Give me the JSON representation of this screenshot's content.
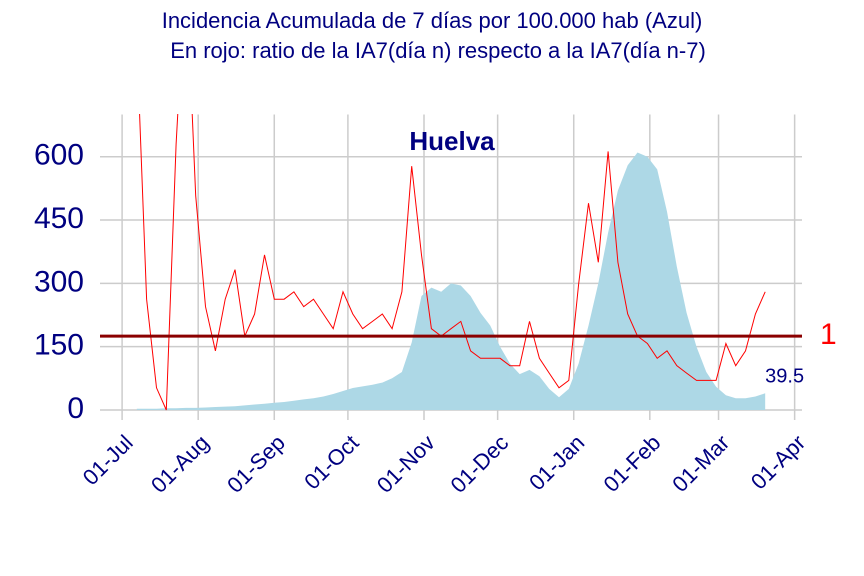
{
  "chart_data": {
    "type": "area-line",
    "title": "Incidencia Acumulada de 7 días por 100.000 hab (Azul)",
    "subtitle": "En rojo: ratio de la IA7(día n) respecto a la IA7(día n-7)",
    "annotation": "Huelva",
    "x": [
      6,
      10,
      14,
      18,
      22,
      26,
      30,
      34,
      38,
      42,
      46,
      50,
      54,
      58,
      62,
      66,
      70,
      74,
      78,
      82,
      86,
      90,
      94,
      98,
      102,
      106,
      110,
      114,
      118,
      122,
      126,
      130,
      134,
      138,
      142,
      146,
      150,
      154,
      158,
      162,
      166,
      170,
      174,
      178,
      182,
      186,
      190,
      194,
      198,
      202,
      206,
      210,
      214,
      218,
      222,
      226,
      230,
      234,
      238,
      242,
      246,
      250,
      254,
      258,
      262
    ],
    "series": [
      {
        "color": "#add8e6",
        "axis": "y",
        "values": [
          3,
          3,
          3,
          4,
          4,
          5,
          5,
          6,
          7,
          8,
          9,
          11,
          13,
          15,
          17,
          19,
          22,
          25,
          28,
          32,
          38,
          45,
          52,
          56,
          60,
          65,
          75,
          90,
          160,
          270,
          290,
          280,
          300,
          295,
          270,
          230,
          200,
          150,
          110,
          85,
          95,
          80,
          50,
          30,
          50,
          110,
          200,
          300,
          420,
          520,
          580,
          610,
          600,
          570,
          470,
          340,
          230,
          150,
          90,
          55,
          35,
          28,
          28,
          32,
          39.5
        ]
      },
      {
        "color": "#ff0000",
        "axis": "y2",
        "values": [
          5,
          1.5,
          0.3,
          0,
          3.6,
          6,
          2.9,
          1.4,
          0.8,
          1.5,
          1.9,
          1.0,
          1.3,
          2.1,
          1.5,
          1.5,
          1.6,
          1.4,
          1.5,
          1.3,
          1.1,
          1.6,
          1.3,
          1.1,
          1.2,
          1.3,
          1.1,
          1.6,
          3.3,
          2.1,
          1.1,
          1.0,
          1.1,
          1.2,
          0.8,
          0.7,
          0.7,
          0.7,
          0.6,
          0.6,
          1.2,
          0.7,
          0.5,
          0.3,
          0.4,
          1.7,
          2.8,
          2.0,
          3.5,
          2.0,
          1.3,
          1.0,
          0.9,
          0.7,
          0.8,
          0.6,
          0.5,
          0.4,
          0.4,
          0.4,
          0.9,
          0.6,
          0.8,
          1.3,
          1.6
        ]
      }
    ],
    "xlim": [
      -9,
      277
    ],
    "xticks": [
      {
        "value": 0,
        "label": "01-Jul"
      },
      {
        "value": 31,
        "label": "01-Aug"
      },
      {
        "value": 62,
        "label": "01-Sep"
      },
      {
        "value": 92,
        "label": "01-Oct"
      },
      {
        "value": 123,
        "label": "01-Nov"
      },
      {
        "value": 153,
        "label": "01-Dec"
      },
      {
        "value": 184,
        "label": "01-Jan"
      },
      {
        "value": 215,
        "label": "01-Feb"
      },
      {
        "value": 243,
        "label": "01-Mar"
      },
      {
        "value": 274,
        "label": "01-Apr"
      }
    ],
    "ylim": [
      0,
      700
    ],
    "yticks": [
      0,
      150,
      300,
      450,
      600
    ],
    "y2lim": [
      0,
      4
    ],
    "y2ticks": [
      1
    ],
    "grid": true
  }
}
